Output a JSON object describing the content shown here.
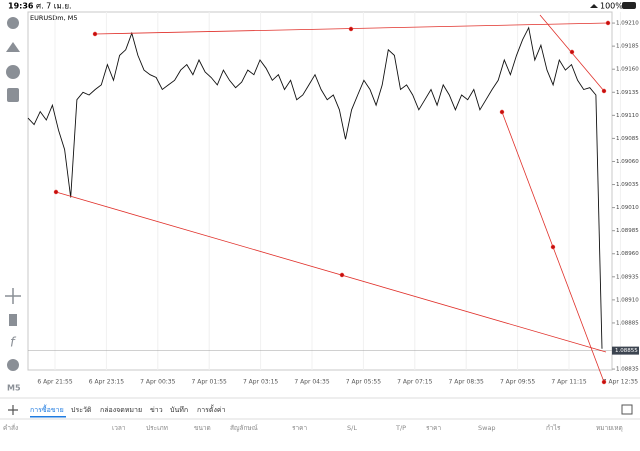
{
  "status_bar": {
    "time": "19:36",
    "date": "ศ. 7 เม.ย.",
    "battery": "100%"
  },
  "chart": {
    "type": "line",
    "symbol_label": "EURUSDm, M5",
    "color": "#111111",
    "values": [
      1.09107,
      1.091,
      1.09114,
      1.09105,
      1.09121,
      1.09094,
      1.09073,
      1.09021,
      1.09127,
      1.09135,
      1.09132,
      1.09138,
      1.09143,
      1.09165,
      1.09148,
      1.09175,
      1.09181,
      1.09199,
      1.09175,
      1.09159,
      1.09154,
      1.09151,
      1.09138,
      1.09143,
      1.09148,
      1.09159,
      1.09165,
      1.09154,
      1.0917,
      1.09157,
      1.09151,
      1.09143,
      1.09159,
      1.09148,
      1.0914,
      1.09146,
      1.09159,
      1.09154,
      1.0917,
      1.09161,
      1.09148,
      1.09154,
      1.09138,
      1.09148,
      1.09127,
      1.09132,
      1.09143,
      1.09154,
      1.09138,
      1.09127,
      1.09132,
      1.09116,
      1.09084,
      1.09116,
      1.09132,
      1.09148,
      1.09138,
      1.09121,
      1.09143,
      1.09181,
      1.09175,
      1.09138,
      1.09143,
      1.09132,
      1.09116,
      1.09127,
      1.09138,
      1.09121,
      1.09143,
      1.09132,
      1.09116,
      1.09132,
      1.09127,
      1.09138,
      1.09116,
      1.09127,
      1.09138,
      1.09148,
      1.0917,
      1.09154,
      1.09175,
      1.09192,
      1.09205,
      1.0917,
      1.09186,
      1.09159,
      1.09143,
      1.0917,
      1.09159,
      1.09165,
      1.09148,
      1.09138,
      1.0914,
      1.09132,
      1.08857
    ],
    "time_labels": [
      "6 Apr 21:55",
      "6 Apr 23:15",
      "7 Apr 00:35",
      "7 Apr 01:55",
      "7 Apr 03:15",
      "7 Apr 04:35",
      "7 Apr 05:55",
      "7 Apr 07:15",
      "7 Apr 08:35",
      "7 Apr 09:55",
      "7 Apr 11:15",
      "7 Apr 12:35"
    ],
    "ylim": [
      1.08834,
      1.09222
    ],
    "yticks": [
      {
        "value": 1.0921,
        "label": "1.09210"
      },
      {
        "value": 1.09185,
        "label": "1.09185"
      },
      {
        "value": 1.0916,
        "label": "1.09160"
      },
      {
        "value": 1.09135,
        "label": "1.09135"
      },
      {
        "value": 1.0911,
        "label": "1.09110"
      },
      {
        "value": 1.09085,
        "label": "1.09085"
      },
      {
        "value": 1.0906,
        "label": "1.09060"
      },
      {
        "value": 1.09035,
        "label": "1.09035"
      },
      {
        "value": 1.0901,
        "label": "1.09010"
      },
      {
        "value": 1.08985,
        "label": "1.08985"
      },
      {
        "value": 1.0896,
        "label": "1.08960"
      },
      {
        "value": 1.08935,
        "label": "1.08935"
      },
      {
        "value": 1.0891,
        "label": "1.08910"
      },
      {
        "value": 1.08885,
        "label": "1.08885"
      },
      {
        "value": 1.08835,
        "label": "1.08835"
      }
    ],
    "current_price": {
      "value": 1.08855,
      "label": "1.08855"
    }
  },
  "sidebar": {
    "timeframe": "M5"
  },
  "tabs": [
    "การซื้อขาย",
    "ประวัติ",
    "กล่องจดหมาย",
    "ข่าว",
    "บันทึก",
    "การตั้งค่า"
  ],
  "columns": [
    "คำสั่ง",
    "เวลา",
    "ประเภท",
    "ขนาด",
    "สัญลักษณ์",
    "ราคา",
    "S/L",
    "T/P",
    "ราคา",
    "Swap",
    "กำไร",
    "หมายเหตุ"
  ]
}
